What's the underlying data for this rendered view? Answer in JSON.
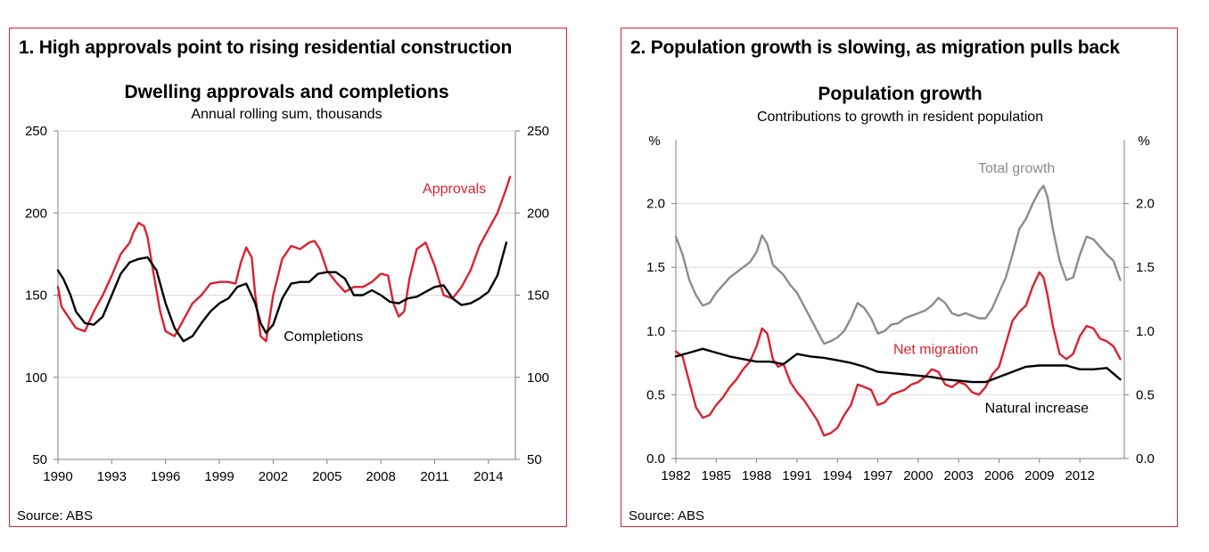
{
  "panels": [
    {
      "heading": "1. High approvals point to rising residential construction",
      "source": "Source: ABS"
    },
    {
      "heading": "2. Population growth is slowing, as migration pulls back",
      "source": "Source: ABS"
    }
  ],
  "chart_data": [
    {
      "type": "line",
      "title": "Dwelling approvals and completions",
      "subtitle": "Annual rolling sum, thousands",
      "xlabel": "",
      "ylabel_left": "",
      "ylabel_right": "",
      "xlim": [
        1990,
        2015.5
      ],
      "ylim": [
        50,
        250
      ],
      "yticks": [
        50,
        100,
        150,
        200,
        250
      ],
      "xticks": [
        1990,
        1993,
        1996,
        1999,
        2002,
        2005,
        2008,
        2011,
        2014
      ],
      "grid": "horizontal",
      "colors": {
        "Approvals": "#d9232e",
        "Completions": "#000000"
      },
      "series": [
        {
          "name": "Approvals",
          "x": [
            1990,
            1990.2,
            1990.5,
            1991,
            1991.5,
            1992,
            1992.5,
            1993,
            1993.5,
            1994,
            1994.2,
            1994.5,
            1994.8,
            1995,
            1995.3,
            1995.7,
            1996,
            1996.5,
            1997,
            1997.5,
            1998,
            1998.5,
            1999,
            1999.5,
            1999.9,
            2000.2,
            2000.5,
            2000.8,
            2001,
            2001.3,
            2001.6,
            2002,
            2002.5,
            2003,
            2003.5,
            2004,
            2004.3,
            2004.6,
            2005,
            2005.5,
            2006,
            2006.5,
            2007,
            2007.5,
            2008,
            2008.4,
            2008.7,
            2009,
            2009.3,
            2009.6,
            2010,
            2010.5,
            2011,
            2011.5,
            2012,
            2012.5,
            2013,
            2013.5,
            2014,
            2014.5,
            2015,
            2015.2
          ],
          "y": [
            155,
            143,
            138,
            130,
            128,
            140,
            150,
            162,
            175,
            182,
            188,
            194,
            192,
            185,
            165,
            140,
            128,
            125,
            135,
            145,
            150,
            157,
            158,
            158,
            157,
            170,
            179,
            173,
            150,
            125,
            122,
            150,
            172,
            180,
            178,
            182,
            183,
            178,
            165,
            158,
            152,
            155,
            155,
            158,
            163,
            162,
            145,
            137,
            140,
            160,
            178,
            182,
            168,
            150,
            148,
            155,
            165,
            180,
            190,
            200,
            215,
            222
          ]
        },
        {
          "name": "Completions",
          "x": [
            1990,
            1990.3,
            1990.7,
            1991,
            1991.5,
            1992,
            1992.5,
            1993,
            1993.5,
            1994,
            1994.5,
            1995,
            1995.5,
            1996,
            1996.5,
            1997,
            1997.5,
            1998,
            1998.5,
            1999,
            1999.5,
            2000,
            2000.5,
            2001,
            2001.3,
            2001.6,
            2002,
            2002.5,
            2003,
            2003.5,
            2004,
            2004.5,
            2005,
            2005.5,
            2006,
            2006.5,
            2007,
            2007.5,
            2008,
            2008.5,
            2009,
            2009.5,
            2010,
            2010.5,
            2011,
            2011.5,
            2012,
            2012.5,
            2013,
            2013.5,
            2014,
            2014.5,
            2015
          ],
          "y": [
            165,
            160,
            150,
            140,
            133,
            132,
            137,
            150,
            163,
            170,
            172,
            173,
            165,
            145,
            130,
            122,
            125,
            133,
            140,
            145,
            148,
            155,
            157,
            145,
            133,
            127,
            132,
            148,
            157,
            158,
            158,
            163,
            164,
            164,
            160,
            150,
            150,
            153,
            150,
            146,
            145,
            148,
            149,
            152,
            155,
            156,
            148,
            144,
            145,
            148,
            152,
            162,
            182
          ]
        }
      ],
      "annotations": [
        {
          "text": "Approvals",
          "x": 2012.1,
          "y": 212
        },
        {
          "text": "Completions",
          "x": 2004.8,
          "y": 122
        }
      ]
    },
    {
      "type": "line",
      "title": "Population growth",
      "subtitle": "Contributions to growth in resident population",
      "xlabel": "",
      "ylabel_left": "%",
      "ylabel_right": "%",
      "xlim": [
        1982,
        2015.3
      ],
      "ylim": [
        0,
        2.5
      ],
      "yticks_labels": [
        "0.0",
        "0.5",
        "1.0",
        "1.5",
        "2.0"
      ],
      "yticks": [
        0,
        0.5,
        1.0,
        1.5,
        2.0
      ],
      "xticks": [
        1982,
        1985,
        1988,
        1991,
        1994,
        1997,
        2000,
        2003,
        2006,
        2009,
        2012
      ],
      "grid": "horizontal",
      "colors": {
        "Total growth": "#8c8c8c",
        "Net migration": "#d9232e",
        "Natural increase": "#000000"
      },
      "series": [
        {
          "name": "Total growth",
          "x": [
            1982,
            1982.5,
            1983,
            1983.5,
            1984,
            1984.5,
            1985,
            1985.5,
            1986,
            1986.5,
            1987,
            1987.5,
            1988,
            1988.4,
            1988.8,
            1989.2,
            1989.6,
            1990,
            1990.5,
            1991,
            1991.5,
            1992,
            1992.5,
            1993,
            1993.5,
            1994,
            1994.5,
            1995,
            1995.5,
            1996,
            1996.5,
            1997,
            1997.5,
            1998,
            1998.5,
            1999,
            1999.5,
            2000,
            2000.5,
            2001,
            2001.5,
            2002,
            2002.5,
            2003,
            2003.5,
            2004,
            2004.5,
            2005,
            2005.5,
            2006,
            2006.5,
            2007,
            2007.5,
            2008,
            2008.5,
            2009,
            2009.3,
            2009.6,
            2010,
            2010.5,
            2011,
            2011.5,
            2012,
            2012.5,
            2013,
            2013.5,
            2014,
            2014.5,
            2015
          ],
          "y": [
            1.74,
            1.6,
            1.4,
            1.28,
            1.2,
            1.22,
            1.3,
            1.36,
            1.42,
            1.46,
            1.5,
            1.54,
            1.62,
            1.75,
            1.68,
            1.52,
            1.48,
            1.44,
            1.36,
            1.3,
            1.2,
            1.1,
            1.0,
            0.9,
            0.92,
            0.95,
            1.0,
            1.1,
            1.22,
            1.18,
            1.1,
            0.98,
            1.0,
            1.05,
            1.06,
            1.1,
            1.12,
            1.14,
            1.16,
            1.2,
            1.26,
            1.22,
            1.14,
            1.12,
            1.14,
            1.12,
            1.1,
            1.1,
            1.18,
            1.3,
            1.42,
            1.6,
            1.8,
            1.88,
            2.0,
            2.1,
            2.14,
            2.05,
            1.8,
            1.55,
            1.4,
            1.42,
            1.6,
            1.74,
            1.72,
            1.66,
            1.6,
            1.55,
            1.4
          ]
        },
        {
          "name": "Net migration",
          "x": [
            1982,
            1982.5,
            1983,
            1983.5,
            1984,
            1984.5,
            1985,
            1985.5,
            1986,
            1986.5,
            1987,
            1987.5,
            1988,
            1988.4,
            1988.8,
            1989.2,
            1989.6,
            1990,
            1990.5,
            1991,
            1991.5,
            1992,
            1992.5,
            1993,
            1993.5,
            1994,
            1994.5,
            1995,
            1995.5,
            1996,
            1996.5,
            1997,
            1997.5,
            1998,
            1998.5,
            1999,
            1999.5,
            2000,
            2000.5,
            2001,
            2001.5,
            2002,
            2002.5,
            2003,
            2003.5,
            2004,
            2004.5,
            2005,
            2005.5,
            2006,
            2006.5,
            2007,
            2007.5,
            2008,
            2008.5,
            2009,
            2009.3,
            2009.6,
            2010,
            2010.5,
            2011,
            2011.5,
            2012,
            2012.5,
            2013,
            2013.5,
            2014,
            2014.5,
            2015
          ],
          "y": [
            0.84,
            0.8,
            0.6,
            0.4,
            0.32,
            0.34,
            0.42,
            0.48,
            0.56,
            0.62,
            0.7,
            0.76,
            0.88,
            1.02,
            0.98,
            0.78,
            0.72,
            0.74,
            0.6,
            0.52,
            0.46,
            0.38,
            0.3,
            0.18,
            0.2,
            0.24,
            0.34,
            0.42,
            0.58,
            0.56,
            0.54,
            0.42,
            0.44,
            0.5,
            0.52,
            0.54,
            0.58,
            0.6,
            0.64,
            0.7,
            0.68,
            0.58,
            0.56,
            0.6,
            0.58,
            0.52,
            0.5,
            0.56,
            0.66,
            0.72,
            0.9,
            1.08,
            1.15,
            1.2,
            1.35,
            1.46,
            1.42,
            1.28,
            1.04,
            0.82,
            0.78,
            0.82,
            0.96,
            1.04,
            1.02,
            0.94,
            0.92,
            0.88,
            0.78
          ]
        },
        {
          "name": "Natural increase",
          "x": [
            1982,
            1983,
            1984,
            1985,
            1986,
            1987,
            1988,
            1989,
            1990,
            1991,
            1992,
            1993,
            1994,
            1995,
            1996,
            1997,
            1998,
            1999,
            2000,
            2001,
            2002,
            2003,
            2004,
            2005,
            2006,
            2007,
            2008,
            2009,
            2010,
            2011,
            2012,
            2013,
            2014,
            2015
          ],
          "y": [
            0.8,
            0.83,
            0.86,
            0.83,
            0.8,
            0.78,
            0.76,
            0.76,
            0.74,
            0.82,
            0.8,
            0.79,
            0.77,
            0.75,
            0.72,
            0.68,
            0.67,
            0.66,
            0.65,
            0.64,
            0.62,
            0.61,
            0.6,
            0.6,
            0.64,
            0.68,
            0.72,
            0.73,
            0.73,
            0.73,
            0.7,
            0.7,
            0.71,
            0.62
          ]
        }
      ],
      "annotations": [
        {
          "text": "Total growth",
          "x": 2007.3,
          "y": 2.24
        },
        {
          "text": "Net migration",
          "x": 2001.3,
          "y": 0.82
        },
        {
          "text": "Natural increase",
          "x": 2008.8,
          "y": 0.36
        }
      ]
    }
  ]
}
